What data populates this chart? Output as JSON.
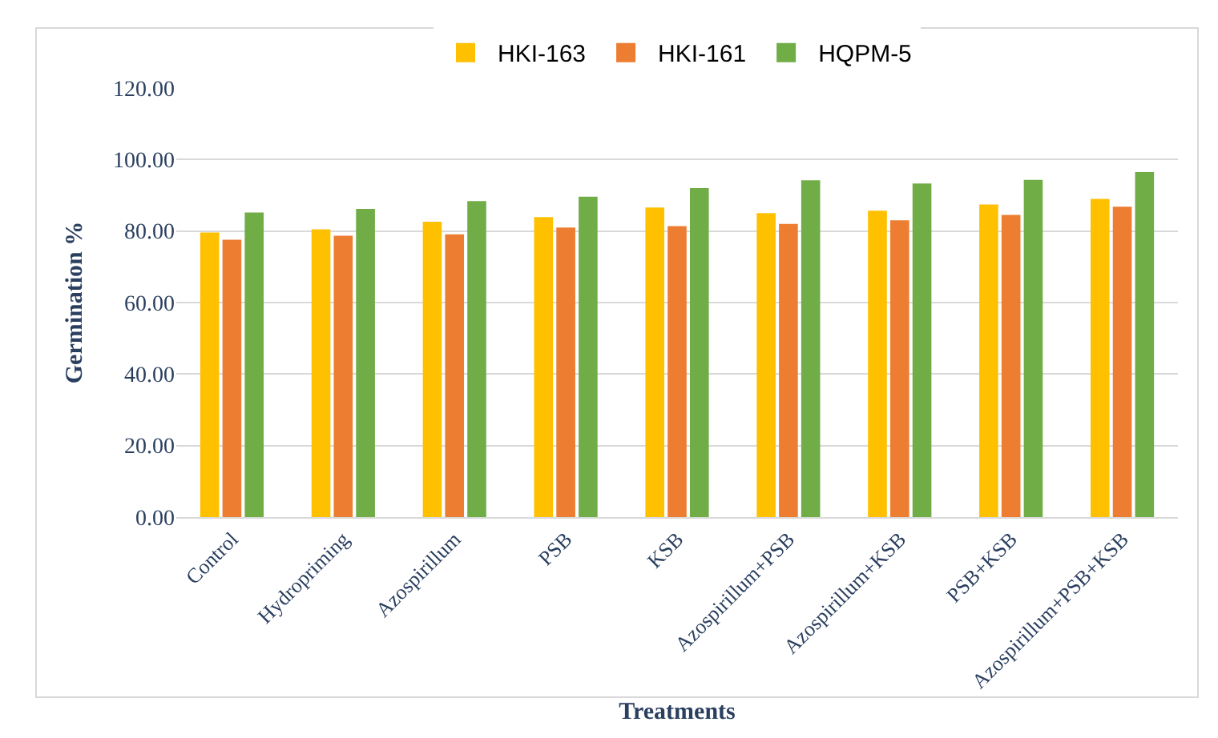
{
  "chart_data": {
    "type": "bar",
    "xlabel": "Treatments",
    "ylabel": "Germination %",
    "categories": [
      "Control",
      "Hydropriming",
      "Azospirillum",
      "PSB",
      "KSB",
      "Azospirillum+PSB",
      "Azospirillum+KSB",
      "PSB+KSB",
      "Azospirillum+PSB+KSB"
    ],
    "series": [
      {
        "name": "HKI-163",
        "color": "#ffc000",
        "values": [
          79.6,
          80.5,
          82.6,
          83.9,
          86.6,
          85.0,
          85.7,
          87.4,
          89.0
        ]
      },
      {
        "name": "HKI-161",
        "color": "#ed7d31",
        "values": [
          77.6,
          78.7,
          79.1,
          81.0,
          81.4,
          82.0,
          83.0,
          84.5,
          86.8
        ]
      },
      {
        "name": "HQPM-5",
        "color": "#70ad47",
        "values": [
          85.2,
          86.2,
          88.4,
          89.6,
          92.0,
          94.2,
          93.3,
          94.3,
          96.5
        ]
      }
    ],
    "ylim": [
      0,
      120
    ],
    "yticks": [
      {
        "value": 0,
        "label": "0.00"
      },
      {
        "value": 20,
        "label": "20.00"
      },
      {
        "value": 40,
        "label": "40.00"
      },
      {
        "value": 60,
        "label": "60.00"
      },
      {
        "value": 80,
        "label": "80.00"
      },
      {
        "value": 100,
        "label": "100.00"
      },
      {
        "value": 120,
        "label": "120.00"
      }
    ],
    "grid": "y",
    "legend": "top"
  }
}
